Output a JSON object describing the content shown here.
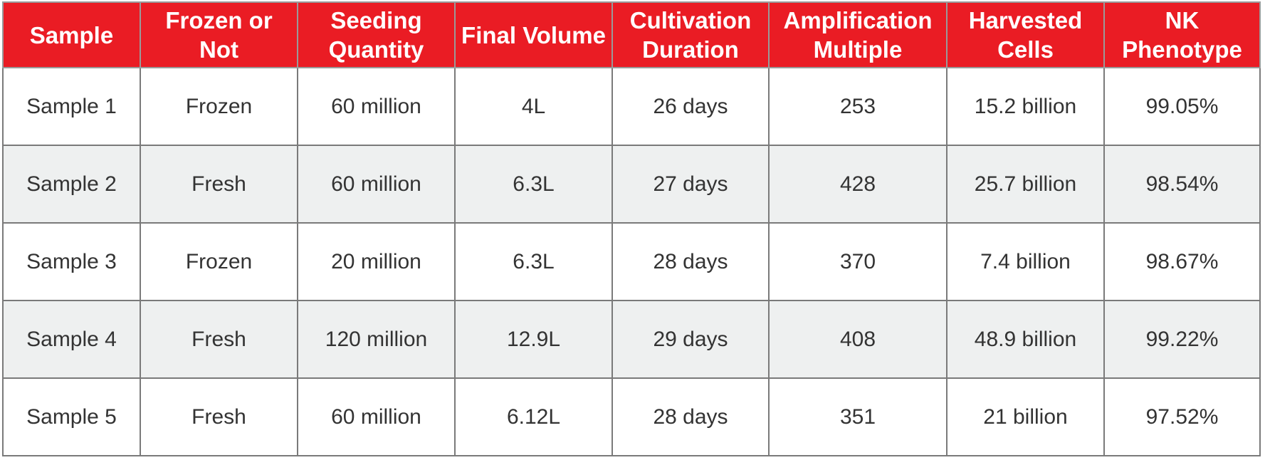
{
  "table": {
    "columns": [
      "Sample",
      "Frozen or Not",
      "Seeding Quantity",
      "Final Volume",
      "Cultivation Duration",
      "Amplification Multiple",
      "Harvested Cells",
      "NK Phenotype"
    ],
    "rows": [
      [
        "Sample 1",
        "Frozen",
        "60 million",
        "4L",
        "26 days",
        "253",
        "15.2 billion",
        "99.05%"
      ],
      [
        "Sample 2",
        "Fresh",
        "60 million",
        "6.3L",
        "27 days",
        "428",
        "25.7 billion",
        "98.54%"
      ],
      [
        "Sample 3",
        "Frozen",
        "20 million",
        "6.3L",
        "28 days",
        "370",
        "7.4 billion",
        "98.67%"
      ],
      [
        "Sample 4",
        "Fresh",
        "120 million",
        "12.9L",
        "29 days",
        "408",
        "48.9 billion",
        "99.22%"
      ],
      [
        "Sample 5",
        "Fresh",
        "60 million",
        "6.12L",
        "28 days",
        "351",
        "21 billion",
        "97.52%"
      ]
    ]
  },
  "colors": {
    "header_background": "#ea1c24",
    "header_text": "#ffffff",
    "stripe_background": "#eef0f0",
    "border": "#7a7a7a",
    "body_text": "#333333"
  }
}
